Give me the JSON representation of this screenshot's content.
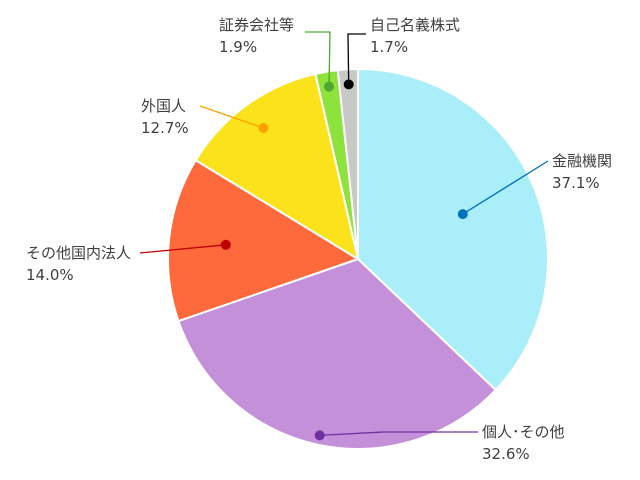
{
  "chart_data": {
    "type": "pie",
    "title": "",
    "slices": [
      {
        "label": "金融機関",
        "value": 37.1,
        "display": "37.1%",
        "color": "#aaeefa",
        "dot": "#0070c0"
      },
      {
        "label": "個人･その他",
        "value": 32.6,
        "display": "32.6%",
        "color": "#c490d9",
        "dot": "#7030a0"
      },
      {
        "label": "その他国内法人",
        "value": 14.0,
        "display": "14.0%",
        "color": "#ff6a3d",
        "dot": "#c00000"
      },
      {
        "label": "外国人",
        "value": 12.7,
        "display": "12.7%",
        "color": "#fbe31b",
        "dot": "#ffa000"
      },
      {
        "label": "証券会社等",
        "value": 1.9,
        "display": "1.9%",
        "color": "#8de23c",
        "dot": "#4ea72e"
      },
      {
        "label": "自己名義株式",
        "value": 1.7,
        "display": "1.7%",
        "color": "#c8c8c8",
        "dot": "#000000"
      }
    ],
    "start_angle": "12 o'clock",
    "direction": "clockwise",
    "legend": "none",
    "data_labels": "outside with leader lines"
  }
}
